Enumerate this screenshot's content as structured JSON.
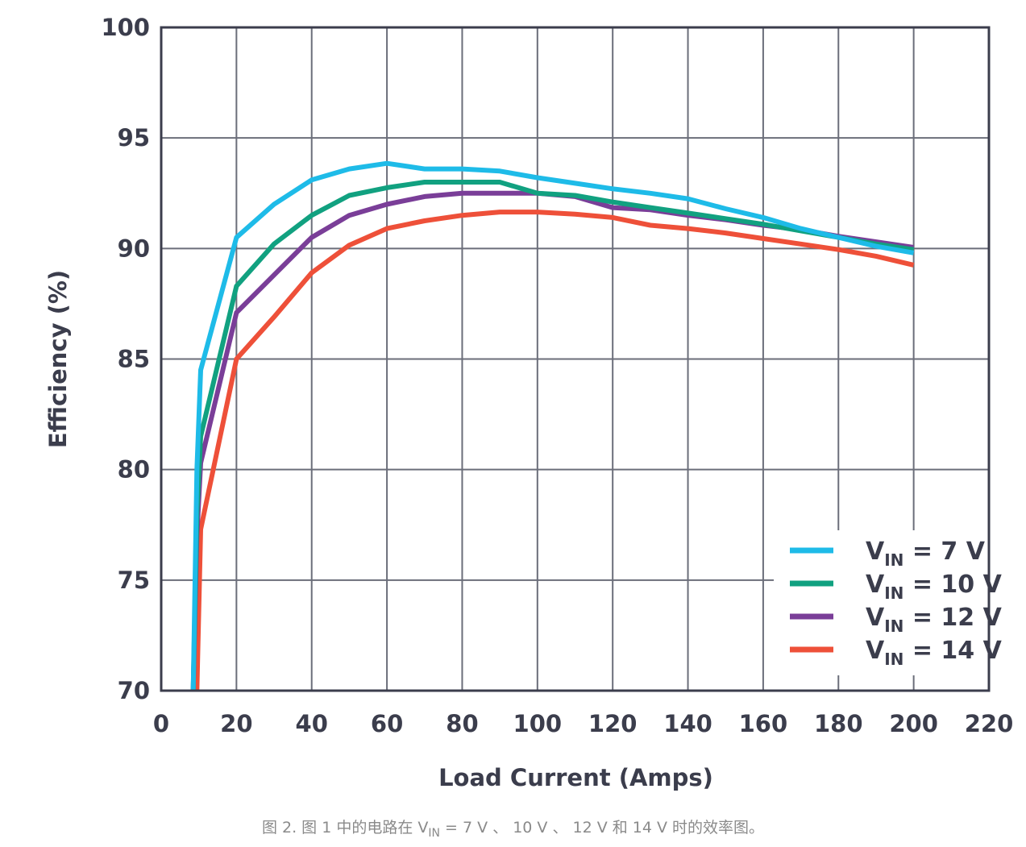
{
  "chart_data": {
    "type": "line",
    "title": "",
    "xlabel": "Load Current (Amps)",
    "ylabel": "Efficiency (%)",
    "xlim": [
      0,
      220
    ],
    "ylim": [
      70,
      100
    ],
    "xticks": [
      0,
      20,
      40,
      60,
      80,
      100,
      120,
      140,
      160,
      180,
      200,
      220
    ],
    "yticks": [
      70,
      75,
      80,
      85,
      90,
      95,
      100
    ],
    "xtick_labels": [
      "0",
      "20",
      "40",
      "60",
      "80",
      "100",
      "120",
      "140",
      "160",
      "180",
      "200",
      "220"
    ],
    "ytick_labels": [
      "70",
      "75",
      "80",
      "85",
      "90",
      "95",
      "100"
    ],
    "grid": true,
    "legend_position": "bottom-right",
    "series": [
      {
        "name": "7 V",
        "legend_prefix": "V",
        "legend_sub": "IN",
        "legend_suffix": " = 7 V",
        "color": "#1ebbe8",
        "x": [
          8.5,
          9.5,
          10.5,
          20,
          30,
          40,
          50,
          60,
          70,
          80,
          90,
          100,
          110,
          120,
          130,
          140,
          150,
          160,
          170,
          180,
          190,
          200
        ],
        "y": [
          70,
          80,
          84.5,
          90.5,
          92.0,
          93.1,
          93.6,
          93.85,
          93.6,
          93.6,
          93.5,
          93.2,
          92.95,
          92.7,
          92.5,
          92.25,
          91.8,
          91.4,
          90.9,
          90.5,
          90.1,
          89.8
        ]
      },
      {
        "name": "10 V",
        "legend_prefix": "V",
        "legend_sub": "IN",
        "legend_suffix": " = 10 V",
        "color": "#11a180",
        "x": [
          8.5,
          9.5,
          10.5,
          20,
          30,
          40,
          50,
          60,
          70,
          80,
          90,
          100,
          110,
          120,
          130,
          140,
          150,
          160,
          170,
          180,
          190,
          200
        ],
        "y": [
          70,
          78,
          81.5,
          88.3,
          90.2,
          91.5,
          92.4,
          92.75,
          93.0,
          93.0,
          93.0,
          92.5,
          92.4,
          92.1,
          91.85,
          91.6,
          91.35,
          91.1,
          90.8,
          90.5,
          90.2,
          89.95
        ]
      },
      {
        "name": "12 V",
        "legend_prefix": "V",
        "legend_sub": "IN",
        "legend_suffix": " = 12 V",
        "color": "#7a3e98",
        "x": [
          8.5,
          9.5,
          10.5,
          20,
          30,
          40,
          50,
          60,
          70,
          80,
          90,
          100,
          110,
          120,
          130,
          140,
          150,
          160,
          170,
          180,
          190,
          200
        ],
        "y": [
          70,
          77,
          80.3,
          87.1,
          88.8,
          90.5,
          91.5,
          92.0,
          92.35,
          92.5,
          92.5,
          92.5,
          92.35,
          91.85,
          91.75,
          91.5,
          91.3,
          91.05,
          90.85,
          90.55,
          90.3,
          90.05
        ]
      },
      {
        "name": "14 V",
        "legend_prefix": "V",
        "legend_sub": "IN",
        "legend_suffix": " = 14 V",
        "color": "#ee5039",
        "x": [
          9.5,
          10.5,
          20,
          30,
          40,
          50,
          60,
          70,
          80,
          90,
          100,
          110,
          120,
          130,
          140,
          150,
          160,
          170,
          180,
          190,
          200
        ],
        "y": [
          70,
          77.3,
          85.0,
          86.9,
          88.9,
          90.15,
          90.9,
          91.25,
          91.5,
          91.65,
          91.65,
          91.55,
          91.4,
          91.05,
          90.9,
          90.7,
          90.45,
          90.2,
          89.95,
          89.65,
          89.25
        ]
      }
    ]
  },
  "caption": {
    "prefix": "图 2. 图 1 中的电路在 V",
    "sub": "IN",
    "suffix": " = 7 V 、 10 V 、 12 V 和 14 V 时的效率图。"
  }
}
